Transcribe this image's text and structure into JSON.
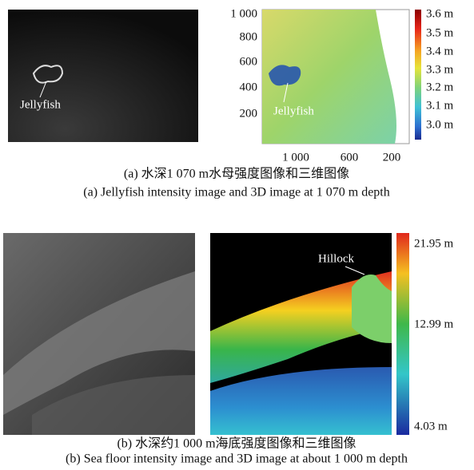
{
  "panel_a": {
    "intensity_image": {
      "annotation": "Jellyfish"
    },
    "depth_image": {
      "annotation": "Jellyfish",
      "y_tick_labels": [
        "1 000",
        "800",
        "600",
        "400",
        "200"
      ],
      "x_tick_labels": [
        "1 000",
        "600",
        "200"
      ],
      "colorbar_labels": [
        "3.6 m",
        "3.5 m",
        "3.4 m",
        "3.3 m",
        "3.2 m",
        "3.1 m",
        "3.0 m"
      ]
    },
    "caption_cn": "(a) 水深1 070 m水母强度图像和三维图像",
    "caption_en": "(a) Jellyfish intensity image and 3D image at 1 070 m depth"
  },
  "panel_b": {
    "depth_image": {
      "annotation": "Hillock",
      "colorbar_labels": [
        "21.95 m",
        "12.99 m",
        "4.03 m"
      ]
    },
    "caption_cn": "(b) 水深约1 000 m海底强度图像和三维图像",
    "caption_en": "(b) Sea floor intensity image and 3D image at about 1 000 m depth"
  }
}
